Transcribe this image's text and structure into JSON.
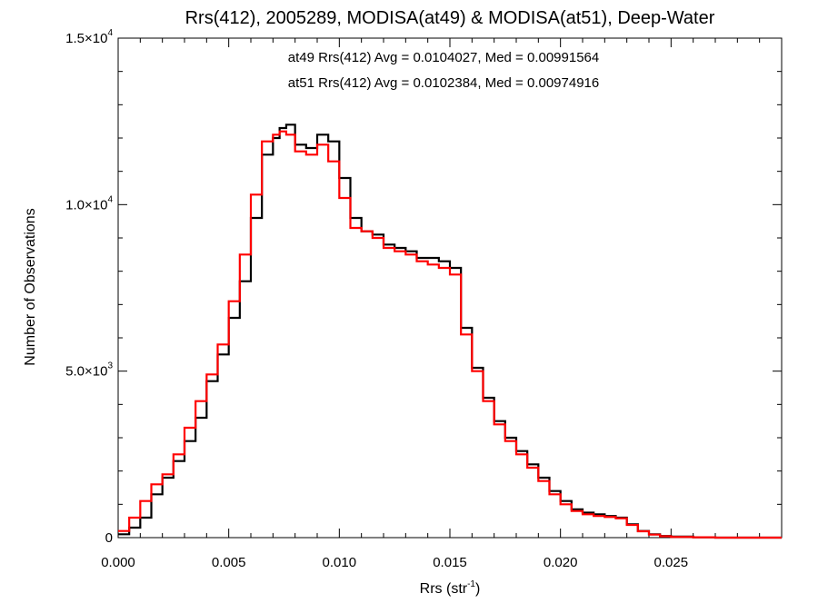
{
  "chart_data": {
    "type": "line",
    "title": "Rrs(412), 2005289, MODISA(at49) & MODISA(at51), Deep-Water",
    "xlabel": "Rrs (str",
    "xlabel_sup": "-1",
    "xlabel_close": ")",
    "ylabel": "Number of Observations",
    "xlim": [
      0.0,
      0.03
    ],
    "ylim": [
      0,
      15000
    ],
    "grid": false,
    "step_style": true,
    "x_ticks": [
      "0.000",
      "0.005",
      "0.010",
      "0.015",
      "0.020",
      "0.025"
    ],
    "x_tick_values": [
      0.0,
      0.005,
      0.01,
      0.015,
      0.02,
      0.025
    ],
    "y_ticks": [
      {
        "value": 0,
        "mant": "0",
        "exp": ""
      },
      {
        "value": 5000,
        "mant": "5.0×10",
        "exp": "3"
      },
      {
        "value": 10000,
        "mant": "1.0×10",
        "exp": "4"
      },
      {
        "value": 15000,
        "mant": "1.5×10",
        "exp": "4"
      }
    ],
    "annotations": [
      {
        "text": "at49 Rrs(412) Avg = 0.0104027, Med = 0.00991564",
        "color": "#000000"
      },
      {
        "text": "at51 Rrs(412) Avg = 0.0102384, Med = 0.00974916",
        "color": "#ff0000"
      }
    ],
    "series": [
      {
        "color": "#000000",
        "x": [
          0.0,
          0.0005,
          0.001,
          0.0015,
          0.002,
          0.0025,
          0.003,
          0.0035,
          0.004,
          0.0045,
          0.005,
          0.0055,
          0.006,
          0.0065,
          0.007,
          0.0073,
          0.0076,
          0.008,
          0.0085,
          0.009,
          0.0095,
          0.01,
          0.0105,
          0.011,
          0.0115,
          0.012,
          0.0125,
          0.013,
          0.0135,
          0.014,
          0.0145,
          0.015,
          0.0155,
          0.016,
          0.0165,
          0.017,
          0.0175,
          0.018,
          0.0185,
          0.019,
          0.0195,
          0.02,
          0.0205,
          0.021,
          0.0215,
          0.022,
          0.0225,
          0.023,
          0.0235,
          0.024,
          0.0245,
          0.025,
          0.026,
          0.027,
          0.028,
          0.03
        ],
        "values": [
          100,
          300,
          600,
          1300,
          1800,
          2300,
          2900,
          3600,
          4700,
          5500,
          6600,
          7700,
          9600,
          11500,
          12000,
          12300,
          12400,
          11800,
          11700,
          12100,
          11900,
          10800,
          9600,
          9200,
          9100,
          8800,
          8700,
          8600,
          8400,
          8400,
          8300,
          8100,
          6300,
          5100,
          4200,
          3500,
          3000,
          2600,
          2200,
          1800,
          1400,
          1100,
          850,
          750,
          700,
          650,
          600,
          400,
          200,
          100,
          50,
          30,
          10,
          0,
          0,
          0
        ]
      },
      {
        "color": "#ff0000",
        "x": [
          0.0,
          0.0005,
          0.001,
          0.0015,
          0.002,
          0.0025,
          0.003,
          0.0035,
          0.004,
          0.0045,
          0.005,
          0.0055,
          0.006,
          0.0065,
          0.007,
          0.0073,
          0.0076,
          0.008,
          0.0085,
          0.009,
          0.0095,
          0.01,
          0.0105,
          0.011,
          0.0115,
          0.012,
          0.0125,
          0.013,
          0.0135,
          0.014,
          0.0145,
          0.015,
          0.0155,
          0.016,
          0.0165,
          0.017,
          0.0175,
          0.018,
          0.0185,
          0.019,
          0.0195,
          0.02,
          0.0205,
          0.021,
          0.0215,
          0.022,
          0.0225,
          0.023,
          0.0235,
          0.024,
          0.0245,
          0.025,
          0.026,
          0.027,
          0.028,
          0.03
        ],
        "values": [
          200,
          600,
          1100,
          1600,
          1900,
          2500,
          3300,
          4100,
          4900,
          5800,
          7100,
          8500,
          10300,
          11900,
          12100,
          12200,
          12100,
          11600,
          11500,
          11800,
          11300,
          10200,
          9300,
          9200,
          9000,
          8700,
          8600,
          8500,
          8300,
          8200,
          8100,
          7900,
          6100,
          5000,
          4100,
          3400,
          2900,
          2500,
          2100,
          1700,
          1300,
          1000,
          800,
          700,
          650,
          620,
          580,
          380,
          190,
          90,
          40,
          20,
          10,
          0,
          0,
          0
        ]
      }
    ]
  }
}
